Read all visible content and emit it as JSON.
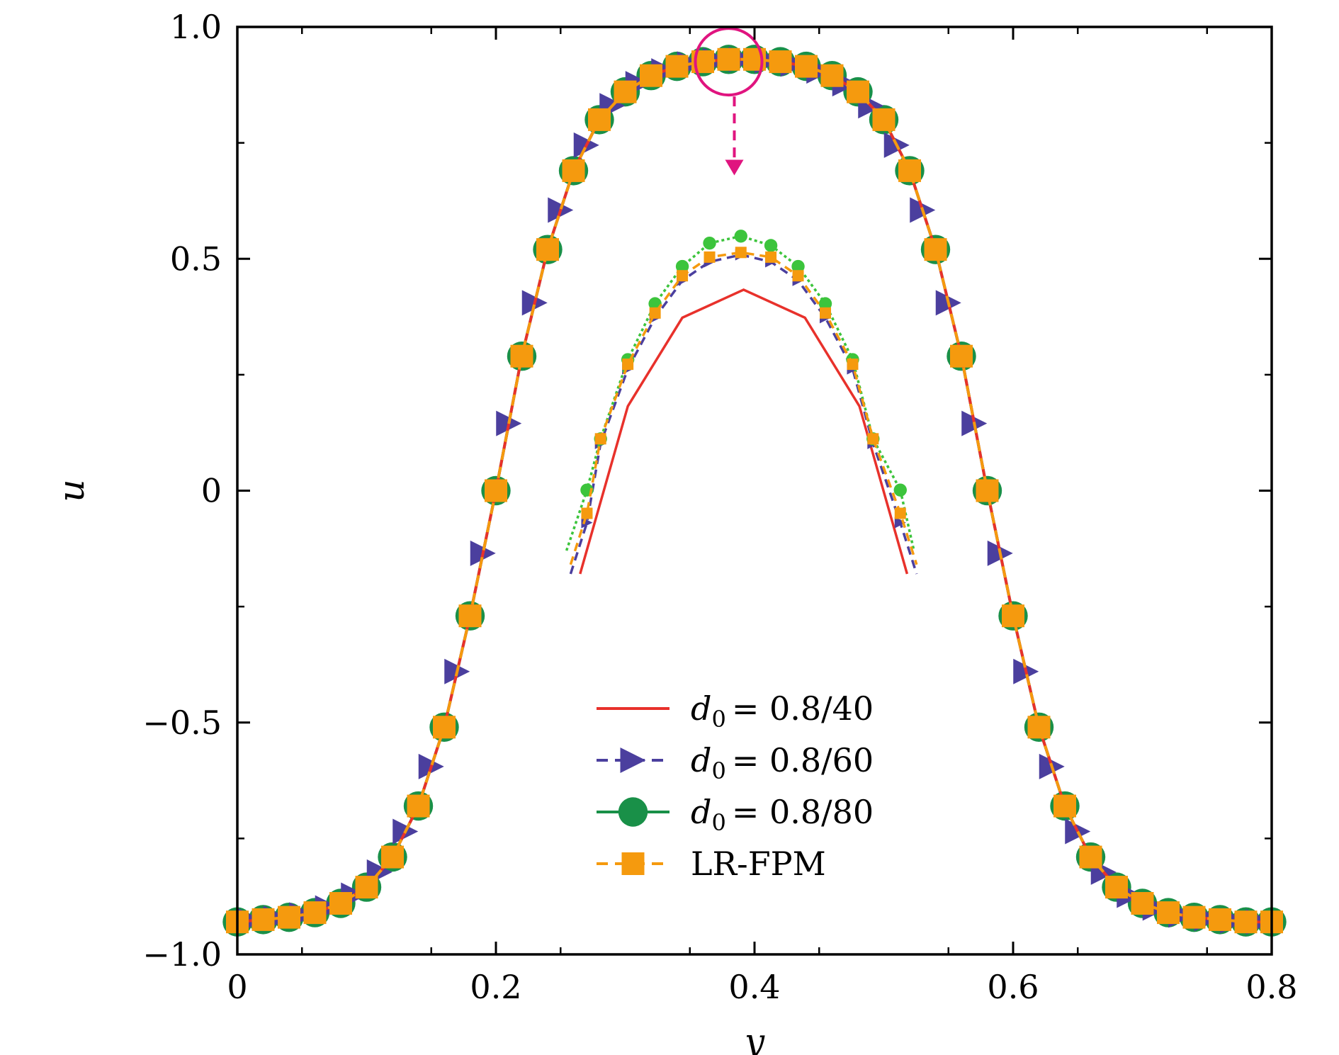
{
  "chart_data": {
    "type": "line",
    "xlabel": "y",
    "ylabel": "u",
    "xlim": [
      0,
      0.8
    ],
    "ylim": [
      -1.0,
      1.0
    ],
    "xticks": [
      0,
      0.2,
      0.4,
      0.6,
      0.8
    ],
    "xtick_labels": [
      "0",
      "0.2",
      "0.4",
      "0.6",
      "0.8"
    ],
    "yticks": [
      -1.0,
      -0.5,
      0,
      0.5,
      1.0
    ],
    "ytick_labels": [
      "−1.0",
      "−0.5",
      "0",
      "0.5",
      "1.0"
    ],
    "grid": false,
    "legend_position": "lower-center",
    "series": [
      {
        "name": "d0 = 0.8/40",
        "legend_sub": "0",
        "legend_rest": "= 0.8/40",
        "color": "#e8312b",
        "style": "solid",
        "marker": "none"
      },
      {
        "name": "d0 = 0.8/60",
        "legend_sub": "0",
        "legend_rest": "= 0.8/60",
        "color": "#4b3f9e",
        "style": "dashed",
        "marker": "triangle-right"
      },
      {
        "name": "d0 = 0.8/80",
        "legend_sub": "0",
        "legend_rest": "= 0.8/80",
        "color": "#199048",
        "style": "solid",
        "marker": "circle"
      },
      {
        "name": "LR-FPM",
        "legend_sub": "",
        "legend_rest": "LR-FPM",
        "color": "#f59a0e",
        "style": "dashed",
        "marker": "square"
      }
    ],
    "profile": {
      "y": [
        0,
        0.02,
        0.04,
        0.06,
        0.08,
        0.1,
        0.12,
        0.14,
        0.16,
        0.18,
        0.2,
        0.22,
        0.24,
        0.26,
        0.28,
        0.3,
        0.32,
        0.34,
        0.36,
        0.38,
        0.4,
        0.42,
        0.44,
        0.46,
        0.48,
        0.5,
        0.52,
        0.54,
        0.56,
        0.58,
        0.6,
        0.62,
        0.64,
        0.66,
        0.68,
        0.7,
        0.72,
        0.74,
        0.76,
        0.78,
        0.8
      ],
      "u": [
        -0.93,
        -0.925,
        -0.92,
        -0.91,
        -0.89,
        -0.855,
        -0.79,
        -0.68,
        -0.51,
        -0.27,
        0.0,
        0.29,
        0.52,
        0.69,
        0.8,
        0.86,
        0.895,
        0.915,
        0.925,
        0.93,
        0.93,
        0.925,
        0.915,
        0.895,
        0.86,
        0.8,
        0.69,
        0.52,
        0.29,
        0.0,
        -0.27,
        -0.51,
        -0.68,
        -0.79,
        -0.855,
        -0.89,
        -0.91,
        -0.92,
        -0.925,
        -0.93,
        -0.93
      ]
    },
    "annotation": {
      "circle_center": [
        0.38,
        0.925
      ],
      "arrow_from_u": 0.85,
      "arrow_to_u": 0.68
    },
    "inset": {
      "description_free": true,
      "x_range": [
        0.25,
        0.51
      ],
      "y_range": [
        -0.18,
        0.55
      ],
      "series": [
        {
          "ref": 0,
          "x": [
            0.265,
            0.3,
            0.34,
            0.385,
            0.43,
            0.47,
            0.505
          ],
          "y": [
            -0.18,
            0.18,
            0.37,
            0.43,
            0.37,
            0.18,
            -0.18
          ]
        },
        {
          "ref": 1,
          "x": [
            0.258,
            0.27,
            0.28,
            0.3,
            0.32,
            0.34,
            0.36,
            0.383,
            0.405,
            0.425,
            0.445,
            0.465,
            0.48,
            0.5,
            0.512
          ],
          "y": [
            -0.18,
            -0.07,
            0.1,
            0.26,
            0.37,
            0.45,
            0.49,
            0.505,
            0.49,
            0.45,
            0.37,
            0.26,
            0.1,
            -0.07,
            -0.18
          ]
        },
        {
          "ref": 2,
          "x": [
            0.255,
            0.27,
            0.28,
            0.3,
            0.32,
            0.34,
            0.36,
            0.383,
            0.405,
            0.425,
            0.445,
            0.465,
            0.48,
            0.5,
            0.51
          ],
          "y": [
            -0.13,
            0.0,
            0.11,
            0.28,
            0.4,
            0.48,
            0.53,
            0.545,
            0.525,
            0.48,
            0.4,
            0.28,
            0.11,
            0.0,
            -0.13
          ]
        },
        {
          "ref": 3,
          "x": [
            0.258,
            0.27,
            0.28,
            0.3,
            0.32,
            0.34,
            0.36,
            0.383,
            0.405,
            0.425,
            0.445,
            0.465,
            0.48,
            0.5,
            0.512
          ],
          "y": [
            -0.16,
            -0.05,
            0.11,
            0.27,
            0.38,
            0.46,
            0.5,
            0.51,
            0.5,
            0.46,
            0.38,
            0.27,
            0.11,
            -0.05,
            -0.16
          ]
        }
      ]
    }
  }
}
